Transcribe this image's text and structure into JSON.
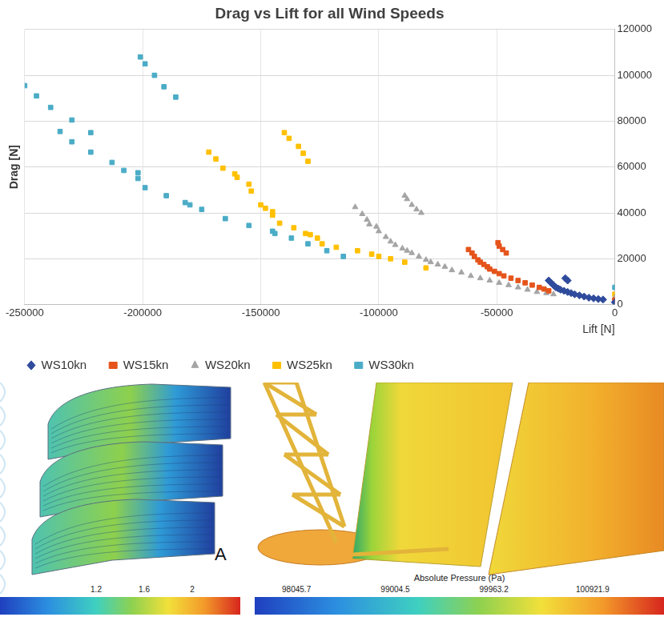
{
  "chart_data": {
    "type": "scatter",
    "title": "Drag vs Lift for all Wind Speeds",
    "x_label": "Lift [N]",
    "y_label": "Drag [N]",
    "xlim": [
      -250000,
      0
    ],
    "xticks": [
      -250000,
      -200000,
      -150000,
      -100000,
      -50000,
      0
    ],
    "ylim": [
      0,
      120000
    ],
    "yticks": [
      0,
      20000,
      40000,
      60000,
      80000,
      100000,
      120000
    ],
    "grid": true,
    "legend": "bottom",
    "series": [
      {
        "name": "WS10kn",
        "color": "#2f4b9c",
        "marker": "diamond",
        "x": [
          -28000,
          -27000,
          -26000,
          -25000,
          -24000,
          -23000,
          -21500,
          -20000,
          -18500,
          -17000,
          -15000,
          -13000,
          -11000,
          -9000,
          -7000,
          -5000,
          -21000,
          -20000,
          0
        ],
        "values": [
          10500,
          9500,
          8500,
          7500,
          7000,
          6500,
          6000,
          5500,
          5000,
          4500,
          4000,
          3500,
          3000,
          2700,
          2400,
          2200,
          11500,
          10500,
          1000
        ]
      },
      {
        "name": "WS15kn",
        "color": "#e5541b",
        "marker": "square",
        "x": [
          -62000,
          -60500,
          -59500,
          -58000,
          -57000,
          -55500,
          -54000,
          -53000,
          -51000,
          -49000,
          -47000,
          -44000,
          -41000,
          -38000,
          -35000,
          -32000,
          -30000,
          -28000,
          -49500,
          -49000,
          -47500,
          -46000,
          0
        ],
        "values": [
          24000,
          22500,
          21000,
          19500,
          18500,
          17500,
          16500,
          15500,
          14500,
          13500,
          12500,
          11500,
          10500,
          9500,
          8500,
          7500,
          6800,
          6000,
          27000,
          25500,
          24000,
          22500,
          2000
        ]
      },
      {
        "name": "WS20kn",
        "color": "#a5a5a5",
        "marker": "triangle",
        "x": [
          -110000,
          -107000,
          -105000,
          -104000,
          -101000,
          -100000,
          -97000,
          -95000,
          -93000,
          -90000,
          -88000,
          -86000,
          -83000,
          -80000,
          -78000,
          -75000,
          -72000,
          -69000,
          -65000,
          -61000,
          -57000,
          -53000,
          -49000,
          -45000,
          -41000,
          -37000,
          -33000,
          -29000,
          -26000,
          -89000,
          -88000,
          -86000,
          -84000,
          -82000,
          0
        ],
        "values": [
          42500,
          39500,
          37000,
          35000,
          34000,
          32000,
          29500,
          27500,
          26000,
          24500,
          23500,
          22500,
          21000,
          19500,
          18500,
          17500,
          16500,
          15000,
          14000,
          12500,
          11500,
          10500,
          9500,
          8500,
          7500,
          6500,
          5500,
          5000,
          4500,
          47500,
          46000,
          43500,
          41500,
          40000,
          3000
        ]
      },
      {
        "name": "WS25kn",
        "color": "#ffc000",
        "marker": "square",
        "x": [
          -172000,
          -169000,
          -166000,
          -161000,
          -160000,
          -155000,
          -154000,
          -150000,
          -148000,
          -145000,
          -145000,
          -142000,
          -136000,
          -131000,
          -129000,
          -126000,
          -124000,
          -118000,
          -109000,
          -103000,
          -100000,
          -95000,
          -89000,
          -80000,
          -140000,
          -138000,
          -134000,
          -132000,
          -130000,
          0
        ],
        "values": [
          66500,
          63500,
          59500,
          57000,
          55500,
          52500,
          49500,
          43500,
          42000,
          40500,
          39000,
          35500,
          33500,
          31000,
          30500,
          29000,
          26500,
          25000,
          23500,
          22000,
          21000,
          20000,
          18500,
          16000,
          75000,
          72500,
          69000,
          66000,
          62500,
          4500
        ]
      },
      {
        "name": "WS30kn",
        "color": "#4bacc6",
        "marker": "square",
        "x": [
          -250000,
          -245000,
          -239000,
          -235000,
          -230000,
          -230000,
          -222000,
          -222000,
          -213000,
          -208000,
          -202000,
          -202000,
          -199000,
          -190000,
          -182000,
          -180000,
          -175000,
          -165000,
          -155000,
          -145000,
          -144000,
          -137000,
          -130000,
          -122000,
          -115000,
          -201000,
          -199000,
          -195000,
          -191000,
          -186000,
          0
        ],
        "values": [
          95500,
          91000,
          86000,
          75500,
          80500,
          71000,
          75000,
          66500,
          62000,
          58500,
          57500,
          55000,
          51000,
          47500,
          44500,
          43500,
          41500,
          37500,
          34500,
          32000,
          31000,
          29000,
          26500,
          23500,
          21000,
          108000,
          105000,
          100000,
          95000,
          90500,
          7500
        ]
      }
    ]
  },
  "panels": [
    {
      "label": "A",
      "colorbar": {
        "range": [
          0.4,
          2.4
        ],
        "ticks": [
          1.2,
          1.6,
          2
        ]
      }
    },
    {
      "colorbar": {
        "title": "Absolute Pressure (Pa)",
        "range": [
          97640,
          101615
        ],
        "ticks": [
          98045.7,
          99004.5,
          99963.2,
          100921.9
        ]
      }
    }
  ]
}
